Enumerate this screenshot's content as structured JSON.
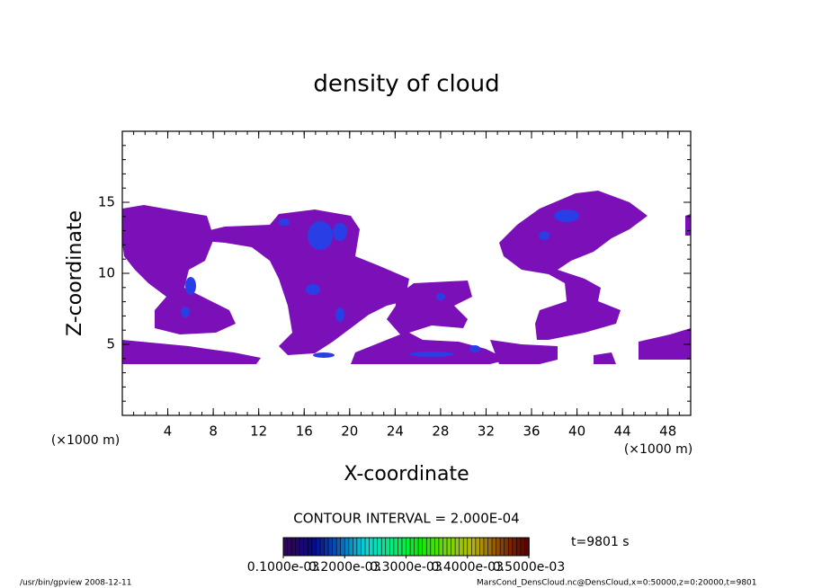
{
  "chart_data": {
    "type": "contour",
    "title": "density of cloud",
    "x_label": "X-coordinate",
    "y_label": "Z-coordinate",
    "x_unit": "(×1000 m)",
    "y_unit": "(×1000 m)",
    "xlim": [
      0,
      50
    ],
    "xticks": [
      4,
      8,
      12,
      16,
      20,
      24,
      28,
      32,
      36,
      40,
      44,
      48
    ],
    "ylim": [
      0,
      20
    ],
    "yticks": [
      5,
      10,
      15
    ],
    "contour_interval": "CONTOUR INTERVAL = 2.000E-04",
    "time_label": "t=9801 s",
    "colorbar": {
      "lim": [
        0.0001,
        0.0005
      ],
      "ticks": [
        {
          "value": 0.0001,
          "label": "0.1000e-03"
        },
        {
          "value": 0.0002,
          "label": "0.2000e-03"
        },
        {
          "value": 0.0003,
          "label": "0.3000e-03"
        },
        {
          "value": 0.0004,
          "label": "0.4000e-03"
        },
        {
          "value": 0.0005,
          "label": "0.5000e-03"
        }
      ]
    },
    "footer_left": "/usr/bin/gpview  2008-12-11",
    "footer_right": "MarsCond_DensCloud.nc@DensCloud,x=0:50000,z=0:20000,t=9801"
  }
}
